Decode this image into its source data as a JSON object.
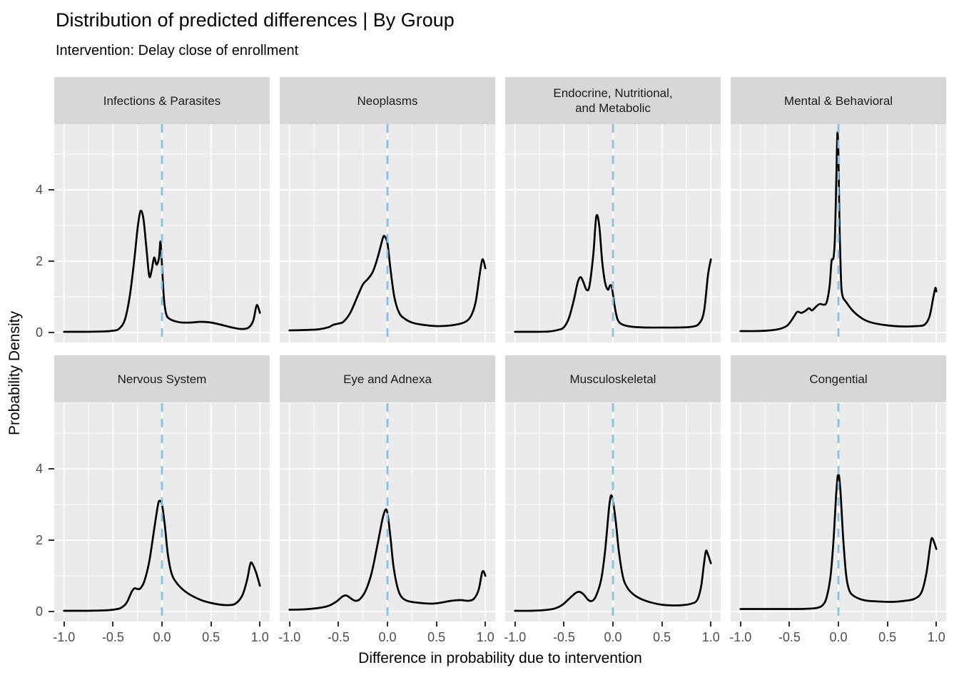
{
  "header": {
    "title": "Distribution of predicted differences | By Group",
    "subtitle": "Intervention: Delay close of enrollment"
  },
  "axes": {
    "x_title": "Difference in probability due to intervention",
    "y_title": "Probability Density",
    "x_tick_labels": [
      "-1.0",
      "-0.5",
      "0.0",
      "0.5",
      "1.0"
    ],
    "x_tick_values": [
      -1.0,
      -0.5,
      0.0,
      0.5,
      1.0
    ],
    "x_minor_values": [
      -0.75,
      -0.25,
      0.25,
      0.75
    ],
    "y_tick_labels": [
      "0",
      "2",
      "4"
    ],
    "y_tick_values": [
      0,
      2,
      4
    ],
    "y_minor_values": [
      1,
      3,
      5
    ]
  },
  "style": {
    "panel_bg": "#EBEBEB",
    "strip_bg": "#D7D7D7",
    "strip_text": "#1A1A1A",
    "grid_color": "#FFFFFF",
    "tick_label_color": "#4D4D4D",
    "tick_mark_color": "#333333",
    "curve_color": "#000000",
    "vline_color": "#85C2E2"
  },
  "chart_data": {
    "type": "line",
    "subtype": "faceted-density",
    "x_range": [
      -1.1,
      1.1
    ],
    "y_range": [
      -0.29,
      5.83
    ],
    "vline_x": 0,
    "grid": true,
    "facets": [
      {
        "name": "Infections & Parasites",
        "points": [
          [
            -1,
            0.02
          ],
          [
            -0.8,
            0.02
          ],
          [
            -0.6,
            0.03
          ],
          [
            -0.5,
            0.05
          ],
          [
            -0.44,
            0.1
          ],
          [
            -0.38,
            0.35
          ],
          [
            -0.33,
            1.0
          ],
          [
            -0.28,
            2.1
          ],
          [
            -0.25,
            2.9
          ],
          [
            -0.22,
            3.4
          ],
          [
            -0.19,
            3.2
          ],
          [
            -0.16,
            2.4
          ],
          [
            -0.13,
            1.58
          ],
          [
            -0.105,
            1.75
          ],
          [
            -0.08,
            2.1
          ],
          [
            -0.055,
            1.9
          ],
          [
            -0.03,
            2.1
          ],
          [
            -0.015,
            2.55
          ],
          [
            0.0,
            1.9
          ],
          [
            0.02,
            0.95
          ],
          [
            0.045,
            0.5
          ],
          [
            0.08,
            0.38
          ],
          [
            0.13,
            0.32
          ],
          [
            0.2,
            0.28
          ],
          [
            0.3,
            0.28
          ],
          [
            0.4,
            0.3
          ],
          [
            0.5,
            0.28
          ],
          [
            0.6,
            0.22
          ],
          [
            0.7,
            0.15
          ],
          [
            0.8,
            0.1
          ],
          [
            0.88,
            0.13
          ],
          [
            0.93,
            0.32
          ],
          [
            0.96,
            0.7
          ],
          [
            0.975,
            0.76
          ],
          [
            1.0,
            0.55
          ]
        ]
      },
      {
        "name": "Neoplasms",
        "points": [
          [
            -1,
            0.06
          ],
          [
            -0.85,
            0.07
          ],
          [
            -0.7,
            0.09
          ],
          [
            -0.6,
            0.15
          ],
          [
            -0.55,
            0.22
          ],
          [
            -0.5,
            0.25
          ],
          [
            -0.45,
            0.3
          ],
          [
            -0.38,
            0.55
          ],
          [
            -0.3,
            1.05
          ],
          [
            -0.25,
            1.35
          ],
          [
            -0.2,
            1.5
          ],
          [
            -0.15,
            1.7
          ],
          [
            -0.1,
            2.1
          ],
          [
            -0.05,
            2.62
          ],
          [
            -0.03,
            2.7
          ],
          [
            0.0,
            2.5
          ],
          [
            0.03,
            1.8
          ],
          [
            0.07,
            1.0
          ],
          [
            0.12,
            0.55
          ],
          [
            0.18,
            0.38
          ],
          [
            0.25,
            0.28
          ],
          [
            0.35,
            0.22
          ],
          [
            0.5,
            0.18
          ],
          [
            0.65,
            0.2
          ],
          [
            0.78,
            0.28
          ],
          [
            0.85,
            0.45
          ],
          [
            0.9,
            0.85
          ],
          [
            0.94,
            1.6
          ],
          [
            0.97,
            2.05
          ],
          [
            1.0,
            1.8
          ]
        ]
      },
      {
        "name": "Endocrine, Nutritional,\nand Metabolic",
        "points": [
          [
            -1,
            0.02
          ],
          [
            -0.8,
            0.02
          ],
          [
            -0.65,
            0.03
          ],
          [
            -0.55,
            0.08
          ],
          [
            -0.5,
            0.15
          ],
          [
            -0.45,
            0.4
          ],
          [
            -0.4,
            0.9
          ],
          [
            -0.36,
            1.4
          ],
          [
            -0.33,
            1.55
          ],
          [
            -0.3,
            1.4
          ],
          [
            -0.27,
            1.2
          ],
          [
            -0.24,
            1.3
          ],
          [
            -0.2,
            2.2
          ],
          [
            -0.17,
            3.25
          ],
          [
            -0.14,
            3.0
          ],
          [
            -0.11,
            2.0
          ],
          [
            -0.08,
            1.4
          ],
          [
            -0.05,
            1.2
          ],
          [
            -0.03,
            1.32
          ],
          [
            -0.01,
            1.25
          ],
          [
            0.02,
            0.7
          ],
          [
            0.05,
            0.35
          ],
          [
            0.1,
            0.22
          ],
          [
            0.2,
            0.16
          ],
          [
            0.35,
            0.14
          ],
          [
            0.5,
            0.14
          ],
          [
            0.65,
            0.14
          ],
          [
            0.8,
            0.16
          ],
          [
            0.88,
            0.25
          ],
          [
            0.93,
            0.6
          ],
          [
            0.97,
            1.6
          ],
          [
            1.0,
            2.05
          ]
        ]
      },
      {
        "name": "Mental & Behavioral",
        "points": [
          [
            -1,
            0.04
          ],
          [
            -0.85,
            0.04
          ],
          [
            -0.7,
            0.06
          ],
          [
            -0.6,
            0.1
          ],
          [
            -0.52,
            0.2
          ],
          [
            -0.46,
            0.42
          ],
          [
            -0.42,
            0.58
          ],
          [
            -0.38,
            0.55
          ],
          [
            -0.34,
            0.6
          ],
          [
            -0.3,
            0.68
          ],
          [
            -0.27,
            0.62
          ],
          [
            -0.23,
            0.72
          ],
          [
            -0.19,
            0.8
          ],
          [
            -0.15,
            0.78
          ],
          [
            -0.12,
            0.85
          ],
          [
            -0.09,
            1.3
          ],
          [
            -0.07,
            2.0
          ],
          [
            -0.05,
            2.1
          ],
          [
            -0.035,
            2.7
          ],
          [
            -0.02,
            4.5
          ],
          [
            -0.01,
            5.6
          ],
          [
            0.0,
            5.0
          ],
          [
            0.01,
            3.2
          ],
          [
            0.025,
            1.6
          ],
          [
            0.04,
            1.05
          ],
          [
            0.08,
            0.85
          ],
          [
            0.15,
            0.6
          ],
          [
            0.25,
            0.38
          ],
          [
            0.35,
            0.27
          ],
          [
            0.5,
            0.2
          ],
          [
            0.65,
            0.17
          ],
          [
            0.8,
            0.18
          ],
          [
            0.88,
            0.22
          ],
          [
            0.93,
            0.45
          ],
          [
            0.97,
            1.0
          ],
          [
            0.99,
            1.25
          ],
          [
            1.0,
            1.15
          ]
        ]
      },
      {
        "name": "Nervous System",
        "points": [
          [
            -1,
            0.02
          ],
          [
            -0.8,
            0.02
          ],
          [
            -0.6,
            0.03
          ],
          [
            -0.5,
            0.05
          ],
          [
            -0.42,
            0.1
          ],
          [
            -0.36,
            0.25
          ],
          [
            -0.31,
            0.55
          ],
          [
            -0.28,
            0.65
          ],
          [
            -0.25,
            0.63
          ],
          [
            -0.22,
            0.65
          ],
          [
            -0.18,
            0.85
          ],
          [
            -0.13,
            1.4
          ],
          [
            -0.08,
            2.3
          ],
          [
            -0.04,
            3.0
          ],
          [
            -0.02,
            3.1
          ],
          [
            0.0,
            3.0
          ],
          [
            0.03,
            2.4
          ],
          [
            0.06,
            1.6
          ],
          [
            0.1,
            1.05
          ],
          [
            0.15,
            0.8
          ],
          [
            0.22,
            0.6
          ],
          [
            0.3,
            0.45
          ],
          [
            0.4,
            0.32
          ],
          [
            0.5,
            0.24
          ],
          [
            0.6,
            0.19
          ],
          [
            0.68,
            0.18
          ],
          [
            0.75,
            0.22
          ],
          [
            0.82,
            0.45
          ],
          [
            0.87,
            0.9
          ],
          [
            0.9,
            1.32
          ],
          [
            0.92,
            1.35
          ],
          [
            0.96,
            1.1
          ],
          [
            1.0,
            0.72
          ]
        ]
      },
      {
        "name": "Eye and Adnexa",
        "points": [
          [
            -1,
            0.05
          ],
          [
            -0.85,
            0.06
          ],
          [
            -0.7,
            0.1
          ],
          [
            -0.6,
            0.16
          ],
          [
            -0.52,
            0.28
          ],
          [
            -0.46,
            0.42
          ],
          [
            -0.42,
            0.45
          ],
          [
            -0.38,
            0.38
          ],
          [
            -0.33,
            0.3
          ],
          [
            -0.28,
            0.35
          ],
          [
            -0.22,
            0.6
          ],
          [
            -0.16,
            1.1
          ],
          [
            -0.1,
            1.9
          ],
          [
            -0.05,
            2.6
          ],
          [
            -0.02,
            2.85
          ],
          [
            0.0,
            2.75
          ],
          [
            0.03,
            2.1
          ],
          [
            0.06,
            1.3
          ],
          [
            0.1,
            0.7
          ],
          [
            0.14,
            0.42
          ],
          [
            0.2,
            0.3
          ],
          [
            0.3,
            0.25
          ],
          [
            0.45,
            0.22
          ],
          [
            0.55,
            0.25
          ],
          [
            0.65,
            0.3
          ],
          [
            0.75,
            0.32
          ],
          [
            0.82,
            0.3
          ],
          [
            0.88,
            0.35
          ],
          [
            0.93,
            0.6
          ],
          [
            0.97,
            1.12
          ],
          [
            1.0,
            1.0
          ]
        ]
      },
      {
        "name": "Musculoskeletal",
        "points": [
          [
            -1,
            0.02
          ],
          [
            -0.85,
            0.02
          ],
          [
            -0.7,
            0.04
          ],
          [
            -0.6,
            0.08
          ],
          [
            -0.52,
            0.18
          ],
          [
            -0.45,
            0.35
          ],
          [
            -0.38,
            0.52
          ],
          [
            -0.34,
            0.55
          ],
          [
            -0.3,
            0.48
          ],
          [
            -0.25,
            0.32
          ],
          [
            -0.21,
            0.3
          ],
          [
            -0.17,
            0.45
          ],
          [
            -0.12,
            0.9
          ],
          [
            -0.08,
            1.7
          ],
          [
            -0.04,
            2.9
          ],
          [
            -0.02,
            3.25
          ],
          [
            0.0,
            3.1
          ],
          [
            0.03,
            2.5
          ],
          [
            0.06,
            1.7
          ],
          [
            0.1,
            1.0
          ],
          [
            0.14,
            0.7
          ],
          [
            0.2,
            0.5
          ],
          [
            0.28,
            0.36
          ],
          [
            0.38,
            0.26
          ],
          [
            0.5,
            0.19
          ],
          [
            0.62,
            0.17
          ],
          [
            0.72,
            0.18
          ],
          [
            0.8,
            0.22
          ],
          [
            0.86,
            0.32
          ],
          [
            0.9,
            0.7
          ],
          [
            0.93,
            1.35
          ],
          [
            0.95,
            1.7
          ],
          [
            0.97,
            1.6
          ],
          [
            1.0,
            1.35
          ]
        ]
      },
      {
        "name": "Congential",
        "points": [
          [
            -1,
            0.07
          ],
          [
            -0.85,
            0.07
          ],
          [
            -0.7,
            0.07
          ],
          [
            -0.55,
            0.07
          ],
          [
            -0.4,
            0.07
          ],
          [
            -0.3,
            0.08
          ],
          [
            -0.22,
            0.1
          ],
          [
            -0.16,
            0.18
          ],
          [
            -0.12,
            0.4
          ],
          [
            -0.08,
            1.0
          ],
          [
            -0.05,
            2.0
          ],
          [
            -0.02,
            3.4
          ],
          [
            0.0,
            3.85
          ],
          [
            0.02,
            3.4
          ],
          [
            0.05,
            2.0
          ],
          [
            0.08,
            1.0
          ],
          [
            0.11,
            0.6
          ],
          [
            0.15,
            0.45
          ],
          [
            0.22,
            0.35
          ],
          [
            0.3,
            0.3
          ],
          [
            0.42,
            0.28
          ],
          [
            0.55,
            0.27
          ],
          [
            0.68,
            0.3
          ],
          [
            0.78,
            0.36
          ],
          [
            0.85,
            0.55
          ],
          [
            0.9,
            1.1
          ],
          [
            0.94,
            1.9
          ],
          [
            0.96,
            2.05
          ],
          [
            1.0,
            1.75
          ]
        ]
      }
    ]
  }
}
